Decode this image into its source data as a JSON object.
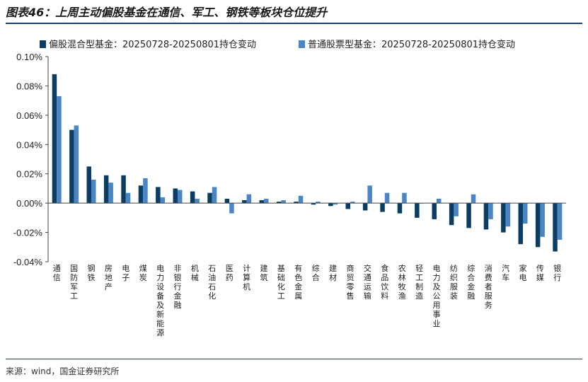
{
  "header": {
    "title": "图表46：上周主动偏股基金在通信、军工、钢铁等板块仓位提升"
  },
  "footer": {
    "source": "来源：wind，国金证券研究所"
  },
  "colors": {
    "series1": "#0b3d63",
    "series2": "#4a86c5",
    "rule": "#1f3f66"
  },
  "chart_data": {
    "type": "bar",
    "title": "",
    "xlabel": "",
    "ylabel": "",
    "ylim": [
      -0.04,
      0.1
    ],
    "y_ticks": [
      "0.10%",
      "0.08%",
      "0.06%",
      "0.04%",
      "0.02%",
      "0.00%",
      "-0.02%",
      "-0.04%"
    ],
    "y_unit": "%",
    "legend_position": "top",
    "grid": false,
    "categories": [
      "通信",
      "国防军工",
      "钢铁",
      "房地产",
      "电子",
      "煤炭",
      "电力设备及新能源",
      "非银行金融",
      "机械",
      "石油石化",
      "医药",
      "计算机",
      "建筑",
      "基础化工",
      "有色金属",
      "综合",
      "建材",
      "商贸零售",
      "交通运输",
      "食品饮料",
      "农林牧渔",
      "轻工制造",
      "电力及公用事业",
      "纺织服装",
      "综合金融",
      "消费者服务",
      "汽车",
      "家电",
      "传媒",
      "银行"
    ],
    "series": [
      {
        "name": "偏股混合型基金：20250728-20250801持仓变动",
        "values": [
          0.088,
          0.05,
          0.025,
          0.019,
          0.019,
          0.012,
          0.011,
          0.01,
          0.008,
          0.007,
          0.003,
          0.002,
          0.002,
          0.001,
          0.001,
          -0.001,
          -0.002,
          -0.004,
          -0.005,
          -0.006,
          -0.007,
          -0.01,
          -0.011,
          -0.015,
          -0.017,
          -0.018,
          -0.02,
          -0.028,
          -0.03,
          -0.033
        ]
      },
      {
        "name": "普通股票型基金：20250728-20250801持仓变动",
        "values": [
          0.073,
          0.053,
          0.016,
          0.014,
          0.007,
          0.017,
          0.004,
          0.009,
          0.003,
          0.011,
          -0.007,
          0.006,
          0.003,
          0.002,
          0.005,
          0.001,
          -0.001,
          0.001,
          0.012,
          0.007,
          0.007,
          0.0,
          0.003,
          -0.009,
          0.006,
          -0.011,
          -0.016,
          -0.014,
          -0.023,
          -0.025
        ]
      }
    ]
  }
}
